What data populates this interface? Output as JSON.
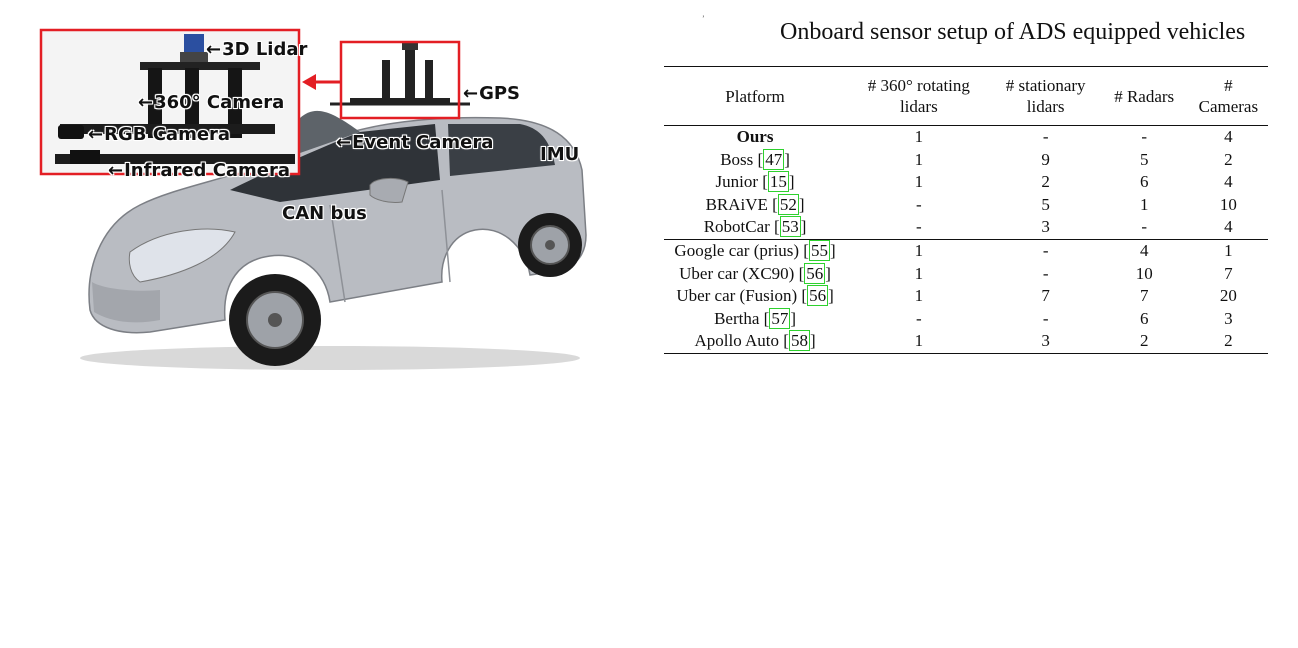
{
  "figure": {
    "labels": {
      "lidar3d": "3D Lidar",
      "camera360": "360° Camera",
      "rgb": "RGB Camera",
      "infrared": "Infrared Camera",
      "gps": "GPS",
      "event": "Event Camera",
      "imu": "IMU",
      "canbus": "CAN bus"
    },
    "arrow_glyph": "←",
    "colors": {
      "callout": "#e31e24",
      "car_body": "#b9bcc2"
    }
  },
  "caption": "Onboard sensor setup of ADS equipped vehicles",
  "tick_mark": "’",
  "table": {
    "headers": {
      "platform": "Platform",
      "rotating": "# 360° rotating lidars",
      "stationary": "# stationary lidars",
      "radars": "# Radars",
      "cameras": "# Cameras"
    },
    "rows": [
      {
        "name": "Ours",
        "ref": "",
        "rot": "1",
        "stat": "-",
        "radar": "-",
        "cam": "4"
      },
      {
        "name": "Boss",
        "ref": "47",
        "rot": "1",
        "stat": "9",
        "radar": "5",
        "cam": "2"
      },
      {
        "name": "Junior",
        "ref": "15",
        "rot": "1",
        "stat": "2",
        "radar": "6",
        "cam": "4"
      },
      {
        "name": "BRAiVE",
        "ref": "52",
        "rot": "-",
        "stat": "5",
        "radar": "1",
        "cam": "10"
      },
      {
        "name": "RobotCar",
        "ref": "53",
        "rot": "-",
        "stat": "3",
        "radar": "-",
        "cam": "4"
      },
      {
        "name": "Google car (prius)",
        "ref": "55",
        "rot": "1",
        "stat": "-",
        "radar": "4",
        "cam": "1"
      },
      {
        "name": "Uber car (XC90)",
        "ref": "56",
        "rot": "1",
        "stat": "-",
        "radar": "10",
        "cam": "7"
      },
      {
        "name": "Uber car (Fusion)",
        "ref": "56",
        "rot": "1",
        "stat": "7",
        "radar": "7",
        "cam": "20"
      },
      {
        "name": "Bertha",
        "ref": "57",
        "rot": "-",
        "stat": "-",
        "radar": "6",
        "cam": "3"
      },
      {
        "name": "Apollo Auto",
        "ref": "58",
        "rot": "1",
        "stat": "3",
        "radar": "2",
        "cam": "2"
      }
    ]
  }
}
